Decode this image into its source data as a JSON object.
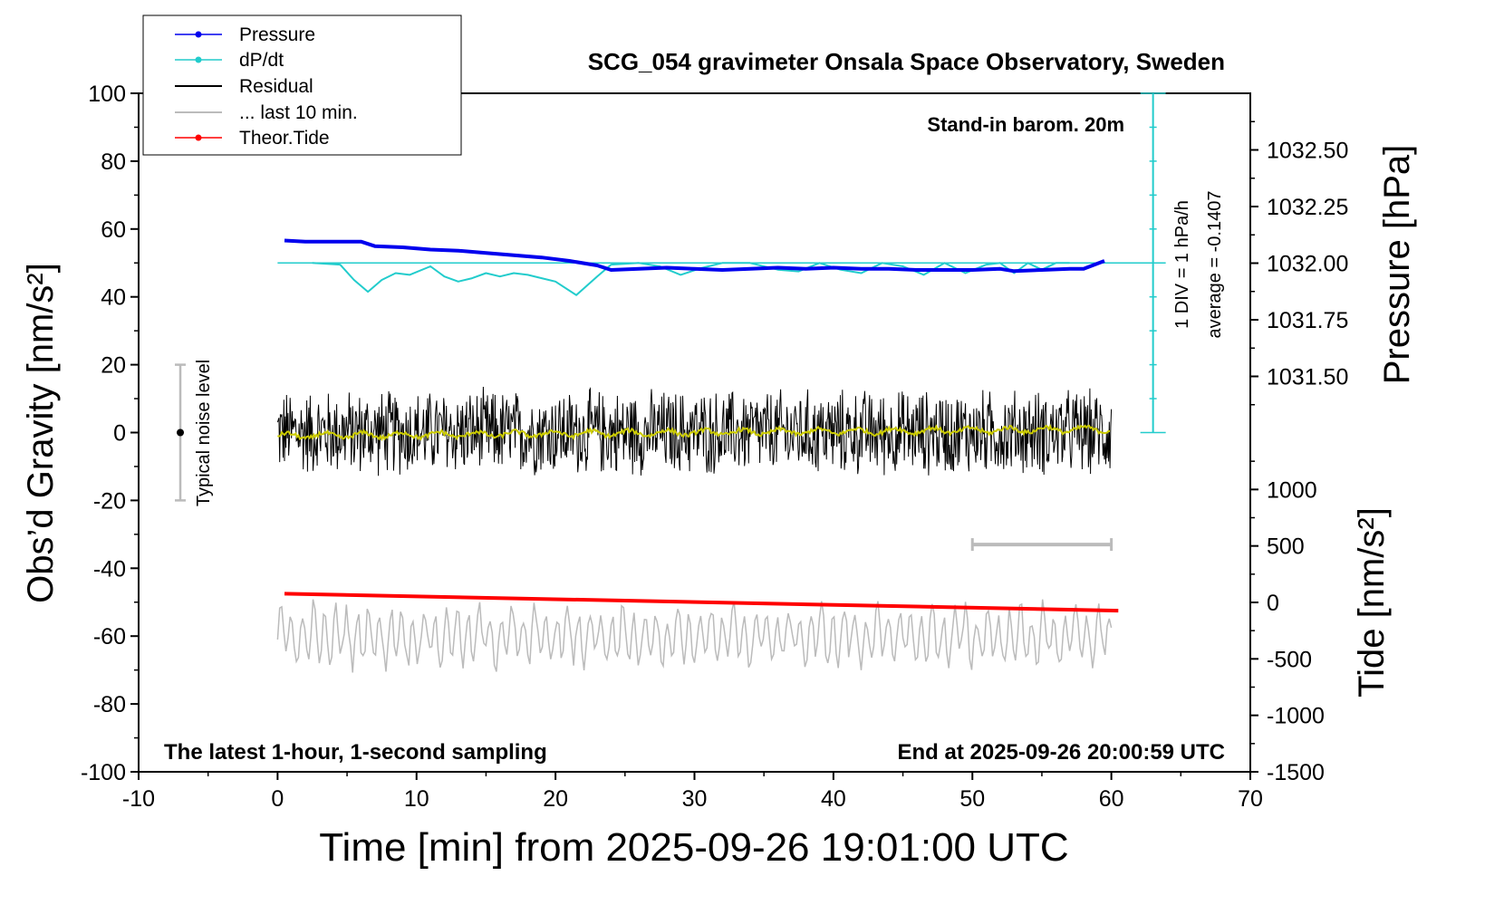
{
  "chart_data": {
    "type": "line",
    "title": "SCG_054 gravimeter Onsala Space Observatory, Sweden",
    "xlabel": "Time [min] from 2025-09-26 19:01:00 UTC",
    "ylabel_left": "Obs’d Gravity [nm/s²]",
    "ylabel_right_top": "Pressure [hPa]",
    "ylabel_right_bottom": "Tide [nm/s²]",
    "xlim": [
      -10,
      70
    ],
    "ylim": [
      -100,
      100
    ],
    "x_ticks": [
      "-10",
      "0",
      "10",
      "20",
      "30",
      "40",
      "50",
      "60",
      "70"
    ],
    "y_ticks": [
      "100",
      "80",
      "60",
      "40",
      "20",
      "0",
      "-20",
      "-40",
      "-60",
      "-80",
      "-100"
    ],
    "pressure_ticks": [
      "1032.50",
      "1032.25",
      "1032.00",
      "1031.75",
      "1031.50"
    ],
    "tide_ticks": [
      "1000",
      "500",
      "0",
      "-500",
      "-1000",
      "-1500"
    ],
    "pressure_range": [
      1031.25,
      1032.75
    ],
    "tide_range": [
      -1500,
      1500
    ],
    "grid": false,
    "legend_placement": "top-left",
    "annotations": {
      "stand_in": "Stand-in barom. 20m",
      "div": "1 DIV = 1 hPa/h",
      "average": "average = -0.1407",
      "noise": "Typical noise level",
      "bottom_left": "The latest 1-hour, 1-second sampling",
      "bottom_right": "End at 2025-09-26 20:00:59 UTC"
    },
    "series": [
      {
        "name": "Pressure",
        "color": "#0000ee",
        "unit": "hPa",
        "x": [
          0.5,
          2,
          4,
          6,
          7,
          9,
          11,
          13,
          15,
          17,
          19,
          21,
          23,
          24,
          26,
          28,
          30,
          32,
          34,
          36,
          38,
          40,
          42,
          44,
          46,
          48,
          50,
          52,
          53,
          55,
          57,
          58,
          59.5
        ],
        "values": [
          1032.1,
          1032.095,
          1032.095,
          1032.095,
          1032.075,
          1032.07,
          1032.06,
          1032.055,
          1032.045,
          1032.035,
          1032.025,
          1032.01,
          1031.99,
          1031.97,
          1031.975,
          1031.98,
          1031.975,
          1031.97,
          1031.975,
          1031.98,
          1031.975,
          1031.98,
          1031.975,
          1031.975,
          1031.97,
          1031.97,
          1031.97,
          1031.975,
          1031.965,
          1031.97,
          1031.975,
          1031.975,
          1032.01
        ]
      },
      {
        "name": "dP/dt",
        "color": "#22cccc",
        "unit": "nm/s²",
        "x": [
          2.5,
          4.5,
          5.5,
          6.5,
          7.5,
          8.5,
          9.5,
          11,
          12,
          13,
          14,
          15,
          16,
          17,
          18,
          19,
          20,
          21.5,
          23,
          24,
          26,
          27.5,
          29,
          30.5,
          32,
          33,
          34,
          36,
          37.5,
          39,
          40.5,
          42,
          43.5,
          45,
          46.5,
          48,
          49.5,
          51,
          52,
          53,
          54,
          55,
          56,
          57
        ],
        "values": [
          50,
          49.5,
          45,
          41.5,
          45,
          47,
          46.5,
          49,
          46,
          44.5,
          45.5,
          47,
          46,
          47,
          46.5,
          45.5,
          44.5,
          40.5,
          46,
          49.5,
          50,
          49,
          46.5,
          48.5,
          50,
          50,
          50,
          48,
          47.5,
          50,
          48,
          47,
          50,
          49,
          46.5,
          50,
          47,
          49.5,
          50,
          47,
          50,
          48,
          50,
          50
        ]
      },
      {
        "name": "Residual",
        "color": "#000000",
        "unit": "nm/s²",
        "x": [
          0,
          60
        ],
        "values": [
          0,
          0
        ]
      },
      {
        "name": "... last 10 min.",
        "color": "#bbbbbb",
        "unit": "nm/s²",
        "x": [
          0,
          60
        ],
        "values": [
          -60,
          -60
        ]
      },
      {
        "name": "Theor.Tide",
        "color": "#ff0000",
        "unit": "nm/s²",
        "x": [
          0.5,
          60.5
        ],
        "values": [
          -47.5,
          -52.5
        ]
      }
    ],
    "residual_smooth": {
      "color": "#cccc00"
    },
    "noise_bar": {
      "x": -7,
      "center": 0,
      "low": -20,
      "high": 20
    },
    "last10_bar": {
      "x_start": 50,
      "x_end": 60,
      "y": -33
    }
  }
}
